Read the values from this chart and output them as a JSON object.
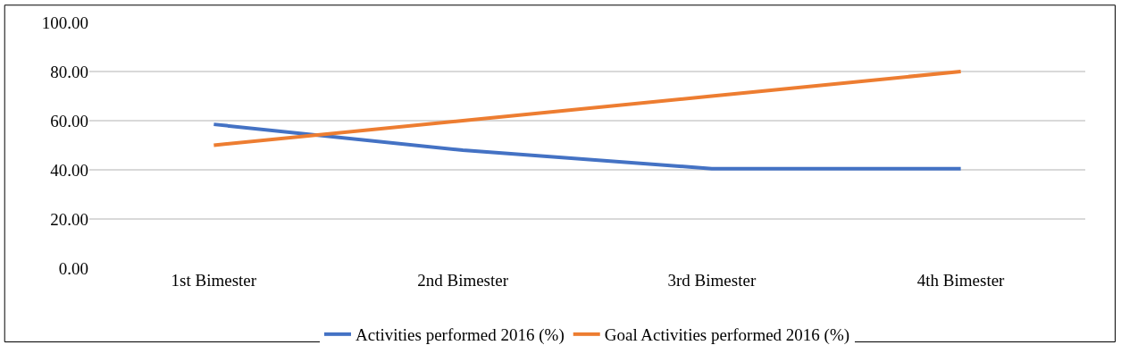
{
  "chart_data": {
    "type": "line",
    "categories": [
      "1st Bimester",
      "2nd Bimester",
      "3rd Bimester",
      "4th Bimester"
    ],
    "series": [
      {
        "name": "Activities performed 2016 (%)",
        "color": "#4472c4",
        "values": [
          58.5,
          48,
          40.5,
          40.5
        ]
      },
      {
        "name": "Goal Activities performed 2016 (%)",
        "color": "#ed7d31",
        "values": [
          50,
          60,
          70,
          80
        ]
      }
    ],
    "ylim": [
      0,
      100
    ],
    "yticks": [
      {
        "value": 0,
        "label": "0.00"
      },
      {
        "value": 20,
        "label": "20.00"
      },
      {
        "value": 40,
        "label": "40.00"
      },
      {
        "value": 60,
        "label": "60.00"
      },
      {
        "value": 80,
        "label": "80.00"
      },
      {
        "value": 100,
        "label": "100.00"
      }
    ],
    "grid": "y",
    "legend": "bottom",
    "marker": "none",
    "line_style": "solid"
  }
}
